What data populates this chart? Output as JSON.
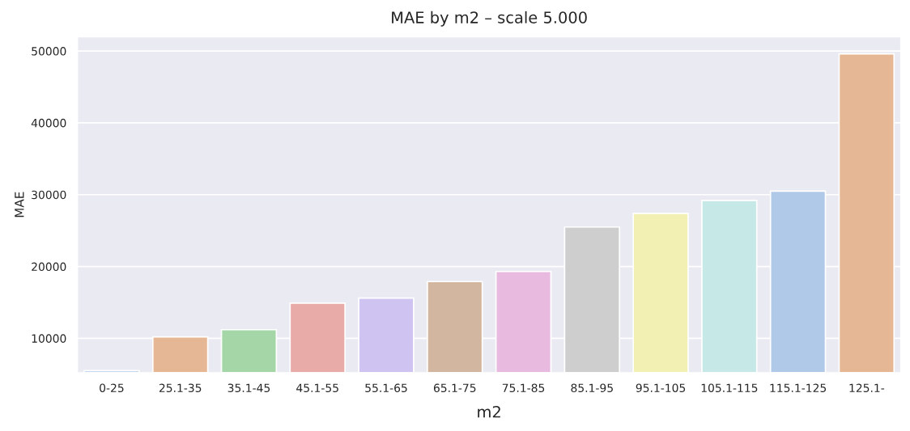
{
  "chart_data": {
    "type": "bar",
    "title": "MAE by m2 – scale 5.000",
    "xlabel": "m2",
    "ylabel": "MAE",
    "categories": [
      "0-25",
      "25.1-35",
      "35.1-45",
      "45.1-55",
      "55.1-65",
      "65.1-75",
      "75.1-85",
      "85.1-95",
      "95.1-105",
      "105.1-115",
      "115.1-125",
      "125.1-"
    ],
    "values": [
      5500,
      10200,
      11200,
      14900,
      15600,
      17900,
      19300,
      25500,
      27400,
      29200,
      30500,
      49600
    ],
    "colors": [
      "#b0c9e8",
      "#e6b795",
      "#a5d6a7",
      "#e8aba8",
      "#cfc3f2",
      "#d3b6a0",
      "#e8badf",
      "#cecece",
      "#f2f0b3",
      "#c6e8e7",
      "#b0c9e8",
      "#e6b795"
    ],
    "ylim": [
      5200,
      52000
    ],
    "yticks": [
      10000,
      20000,
      30000,
      40000,
      50000
    ],
    "grid": "y"
  }
}
